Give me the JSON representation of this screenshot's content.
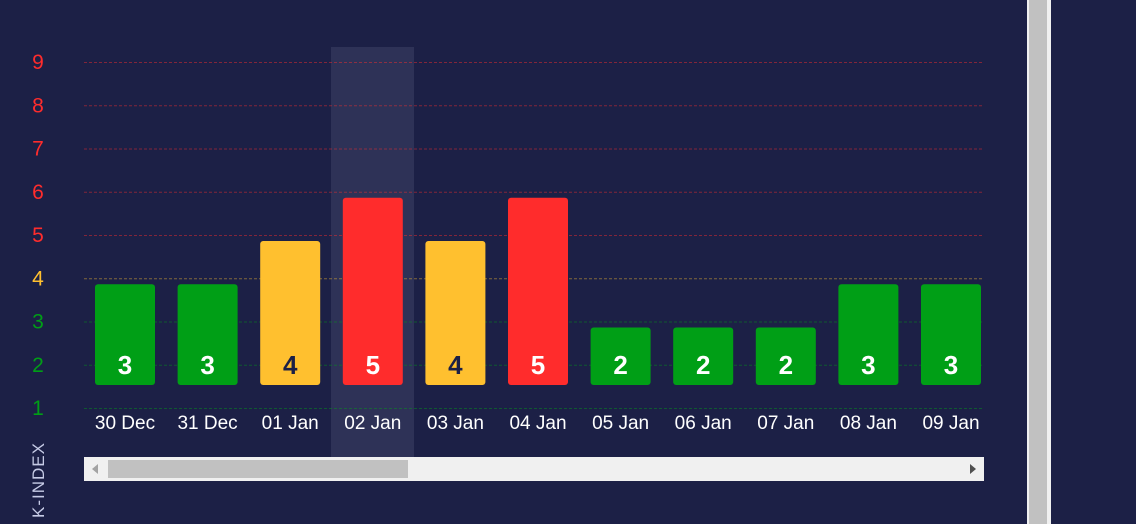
{
  "chart_data": {
    "type": "bar",
    "categories": [
      "30 Dec",
      "31 Dec",
      "01 Jan",
      "02 Jan",
      "03 Jan",
      "04 Jan",
      "05 Jan",
      "06 Jan",
      "07 Jan",
      "08 Jan",
      "09 Jan"
    ],
    "values": [
      3,
      3,
      4,
      5,
      4,
      5,
      2,
      2,
      2,
      3,
      3
    ],
    "ylabel": "K-INDEX",
    "yticks": [
      1,
      2,
      3,
      4,
      5,
      6,
      7,
      8,
      9
    ],
    "ylim": [
      1,
      9
    ],
    "grid": true,
    "highlighted_category": "02 Jan",
    "colors": {
      "low": "#009f16",
      "moderate": "#ffc02f",
      "high": "#ff2c2c",
      "background": "#1c2046",
      "label_light": "#ffffff",
      "label_dark": "#1c2046"
    },
    "thresholds": {
      "moderate": 4,
      "high": 5
    }
  }
}
